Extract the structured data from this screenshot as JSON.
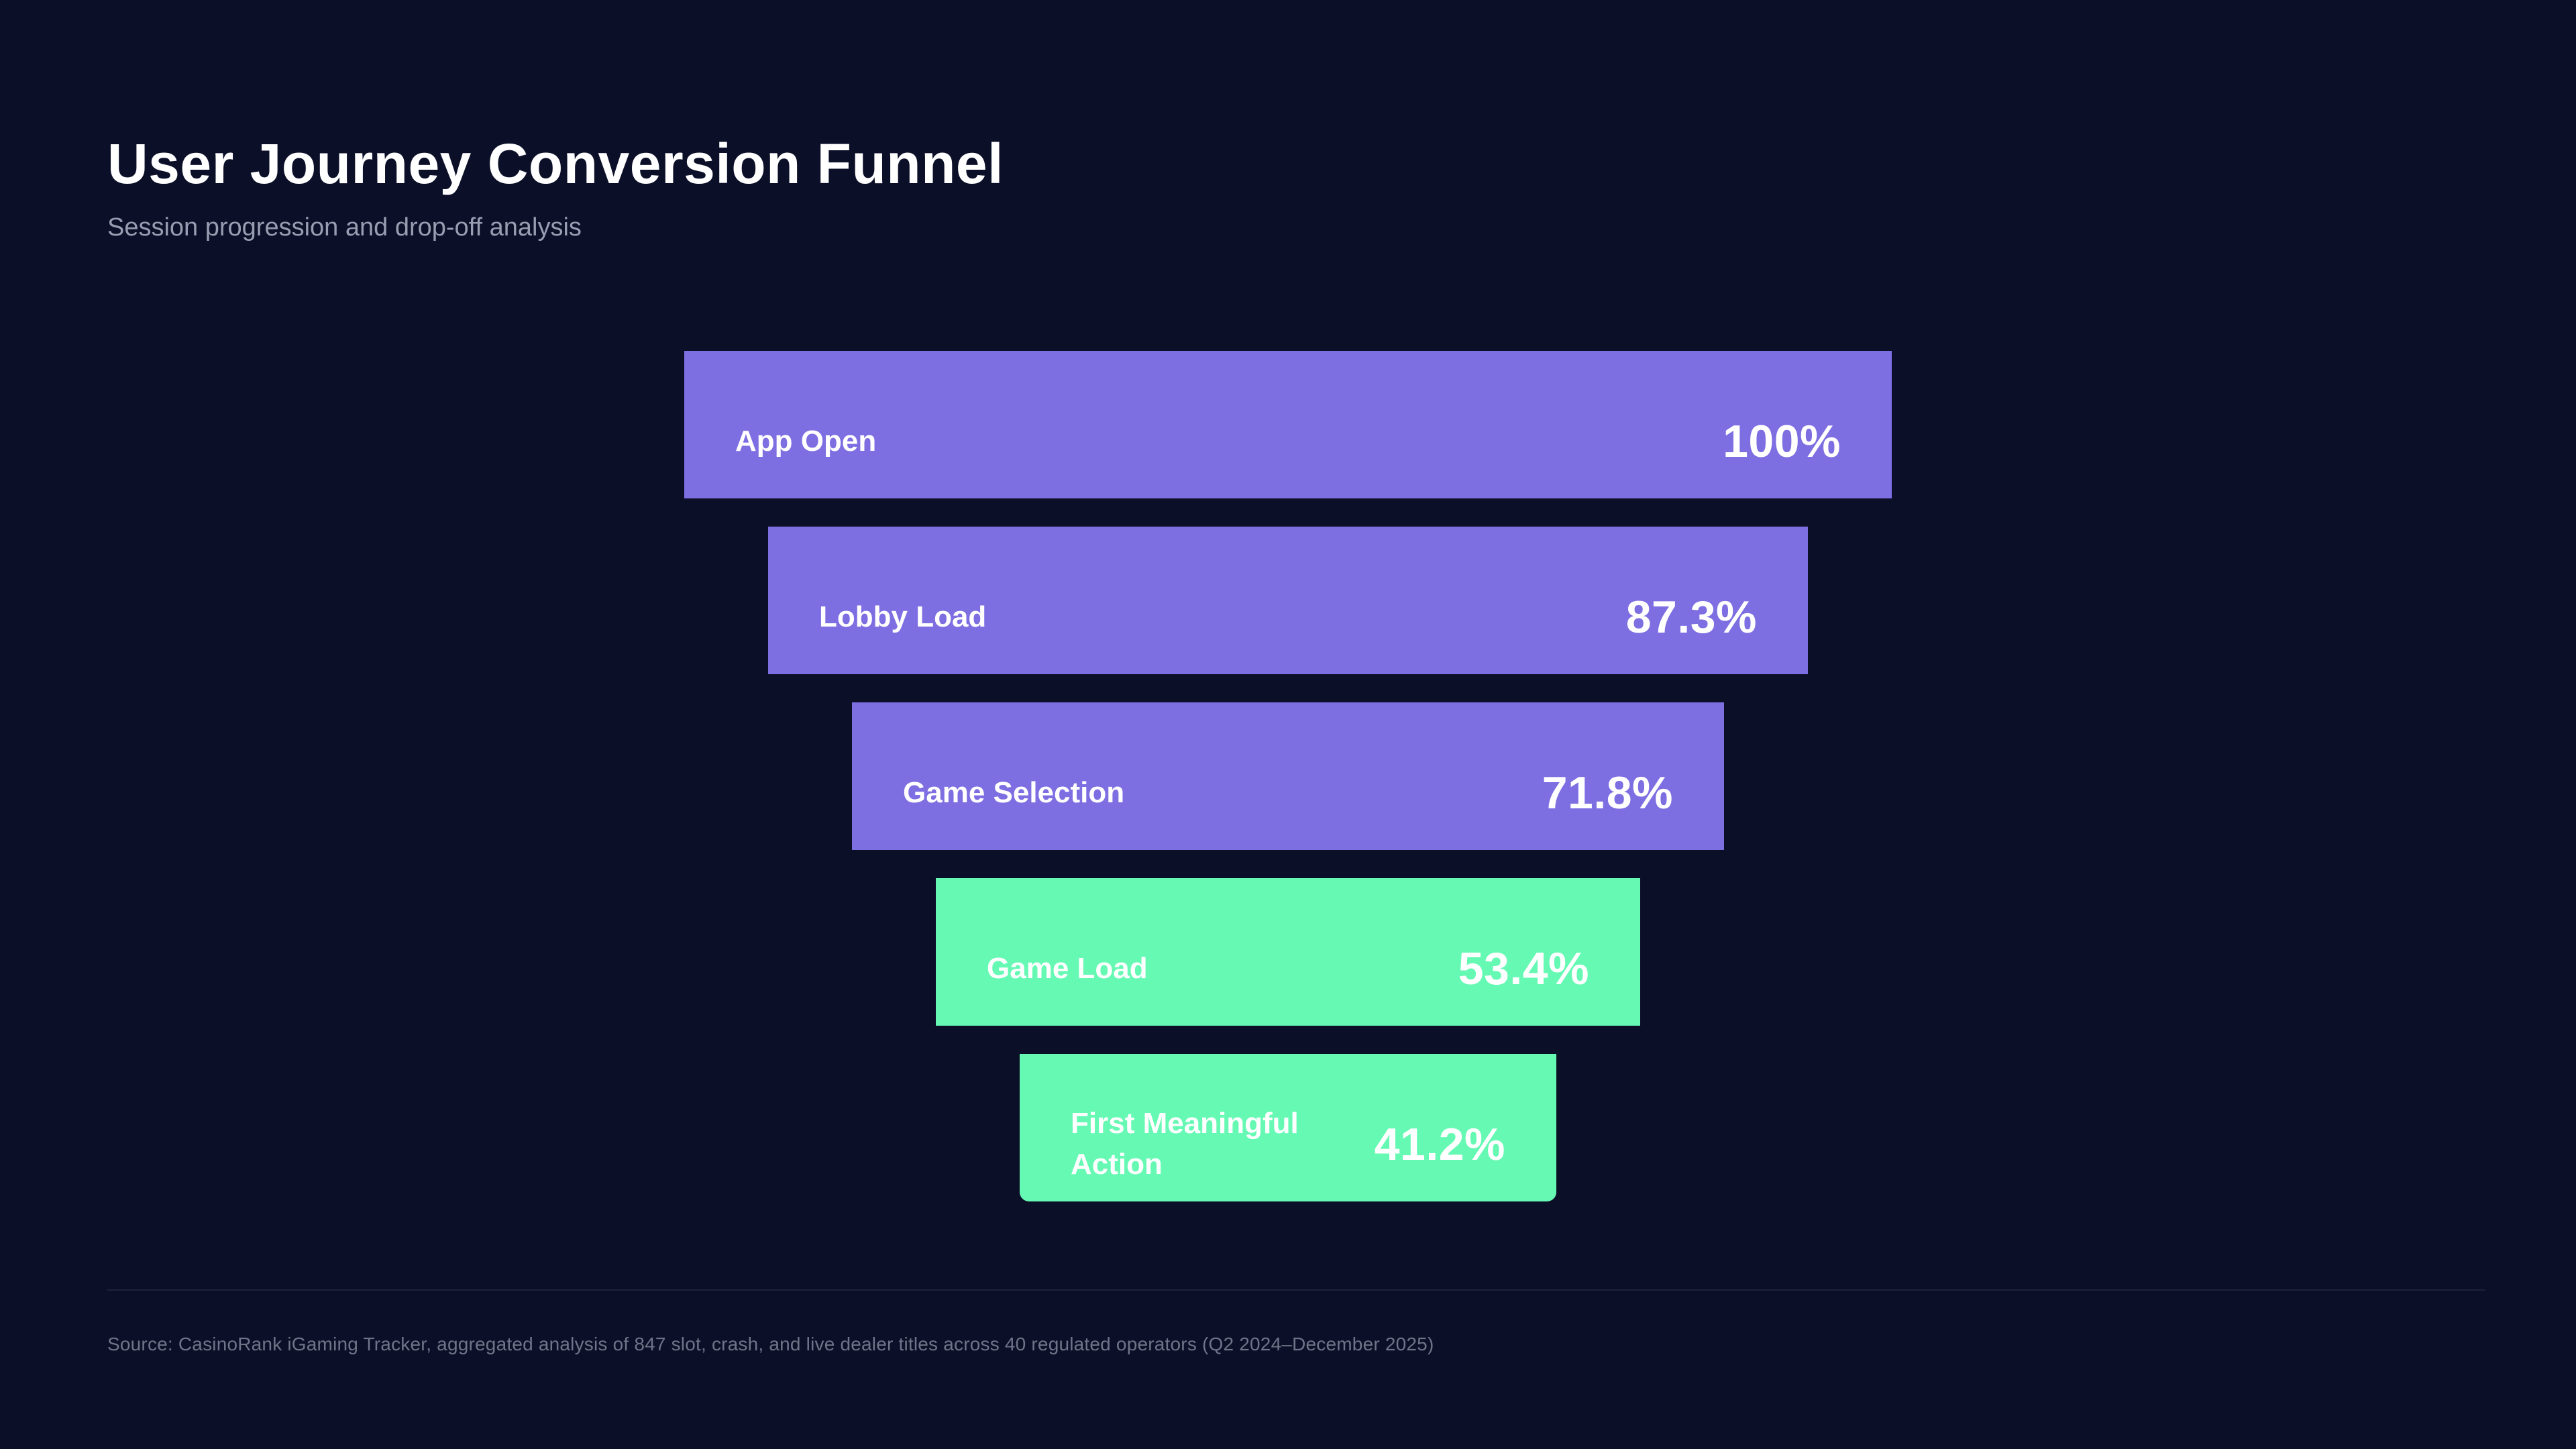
{
  "page": {
    "title": "User Journey Conversion Funnel",
    "subtitle": "Session progression and drop-off analysis",
    "source_note": "Source: CasinoRank iGaming Tracker, aggregated analysis of 847 slot, crash, and live dealer titles across 40 regulated operators (Q2 2024–December 2025)"
  },
  "colors": {
    "background": "#0C0F28",
    "purple_stage": "#7D6EE2",
    "green_stage": "#66F9B4",
    "title_text": "#FFFFFF",
    "subtitle_text": "#989EB1",
    "source_text": "#6F7588"
  },
  "chart_data": {
    "type": "funnel",
    "title": "User Journey Conversion Funnel",
    "subtitle": "Session progression and drop-off analysis",
    "orientation": "vertical",
    "value_unit": "%",
    "legend": "none",
    "grid": "off",
    "stages": [
      {
        "label": "App Open",
        "value": 100,
        "value_label": "100%",
        "color": "#7D6EE2"
      },
      {
        "label": "Lobby Load",
        "value": 87.3,
        "value_label": "87.3%",
        "color": "#7D6EE2"
      },
      {
        "label": "Game Selection",
        "value": 71.8,
        "value_label": "71.8%",
        "color": "#7D6EE2"
      },
      {
        "label": "Game Load",
        "value": 53.4,
        "value_label": "53.4%",
        "color": "#66F9B4"
      },
      {
        "label": "First Meaningful Action",
        "value": 41.2,
        "value_label": "41.2%",
        "color": "#66F9B4"
      }
    ]
  }
}
